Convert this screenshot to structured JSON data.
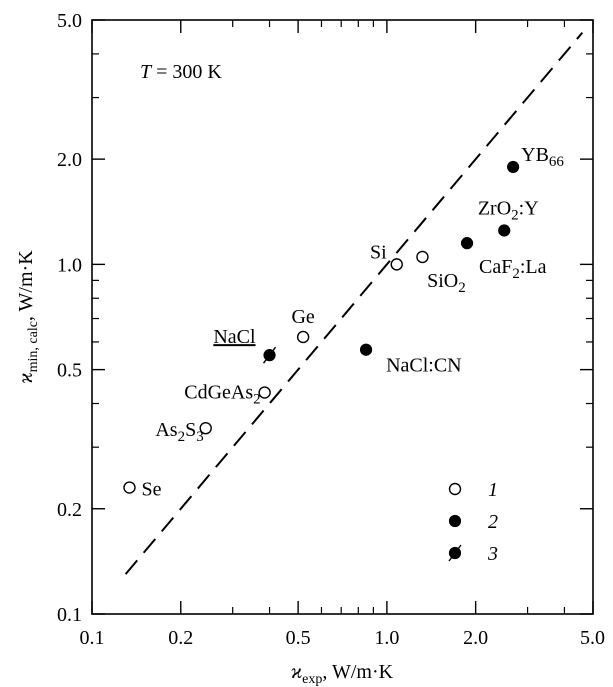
{
  "chart_data": {
    "type": "scatter",
    "x_scale": "log",
    "y_scale": "log",
    "xlim": [
      0.1,
      5.0
    ],
    "ylim": [
      0.1,
      5.0
    ],
    "x_ticks": [
      {
        "value": 0.1,
        "label": "0.1"
      },
      {
        "value": 0.2,
        "label": "0.2"
      },
      {
        "value": 0.5,
        "label": "0.5"
      },
      {
        "value": 1.0,
        "label": "1.0"
      },
      {
        "value": 2.0,
        "label": "2.0"
      },
      {
        "value": 5.0,
        "label": "5.0"
      }
    ],
    "y_ticks": [
      {
        "value": 0.1,
        "label": "0.1"
      },
      {
        "value": 0.2,
        "label": "0.2"
      },
      {
        "value": 0.5,
        "label": "0.5"
      },
      {
        "value": 1.0,
        "label": "1.0"
      },
      {
        "value": 2.0,
        "label": "2.0"
      },
      {
        "value": 5.0,
        "label": "5.0"
      }
    ],
    "xlabel": {
      "symbol": "ϰ",
      "sub": "exp",
      "units": ", W/m·K"
    },
    "ylabel": {
      "symbol": "ϰ",
      "sub": "min, calc",
      "units": ", W/m·K"
    },
    "annotation": {
      "italic": "T",
      "rest": " = 300 K"
    },
    "reference_line": {
      "style": "dashed",
      "description": "y = x",
      "from": [
        0.13,
        0.13
      ],
      "to": [
        4.6,
        4.6
      ]
    },
    "legend": {
      "position": "bottom-right",
      "entries": [
        {
          "marker": "open-circle",
          "label": "1"
        },
        {
          "marker": "filled-circle",
          "label": "2"
        },
        {
          "marker": "filled-circle-slash",
          "label": "3"
        }
      ]
    },
    "points": [
      {
        "id": "se",
        "label": "Se",
        "x": 0.134,
        "y": 0.23,
        "marker": "open-circle",
        "label_pos": "right"
      },
      {
        "id": "as2s3",
        "label_parts": [
          "As",
          "2",
          "S",
          "3"
        ],
        "x": 0.243,
        "y": 0.34,
        "marker": "open-circle",
        "label_pos": "left"
      },
      {
        "id": "cdgeas2",
        "label_parts": [
          "CdGeAs",
          "2"
        ],
        "x": 0.385,
        "y": 0.43,
        "marker": "open-circle",
        "label_pos": "left"
      },
      {
        "id": "nacl",
        "label": "NaCl",
        "underline": true,
        "x": 0.4,
        "y": 0.55,
        "marker": "filled-circle-slash",
        "label_pos": "upper-left"
      },
      {
        "id": "ge",
        "label": "Ge",
        "x": 0.52,
        "y": 0.62,
        "marker": "open-circle",
        "label_pos": "above"
      },
      {
        "id": "naclcn",
        "label": "NaCl:CN",
        "x": 0.85,
        "y": 0.57,
        "marker": "filled-circle",
        "label_pos": "lower-right"
      },
      {
        "id": "si",
        "label": "Si",
        "x": 1.08,
        "y": 1.0,
        "marker": "open-circle",
        "label_pos": "upper-left"
      },
      {
        "id": "sio2",
        "label_parts": [
          "SiO",
          "2"
        ],
        "x": 1.32,
        "y": 1.05,
        "marker": "open-circle",
        "label_pos": "below"
      },
      {
        "id": "caf2la",
        "label_parts": [
          "CaF",
          "2",
          ":La"
        ],
        "x": 1.87,
        "y": 1.15,
        "marker": "filled-circle",
        "label_pos": "lower-right"
      },
      {
        "id": "zro2y",
        "label_parts": [
          "ZrO",
          "2",
          ":Y"
        ],
        "x": 2.5,
        "y": 1.25,
        "marker": "filled-circle",
        "label_pos": "above"
      },
      {
        "id": "yb66",
        "label_parts": [
          "YB",
          "66"
        ],
        "x": 2.68,
        "y": 1.9,
        "marker": "filled-circle",
        "label_pos": "upper-right"
      }
    ]
  }
}
